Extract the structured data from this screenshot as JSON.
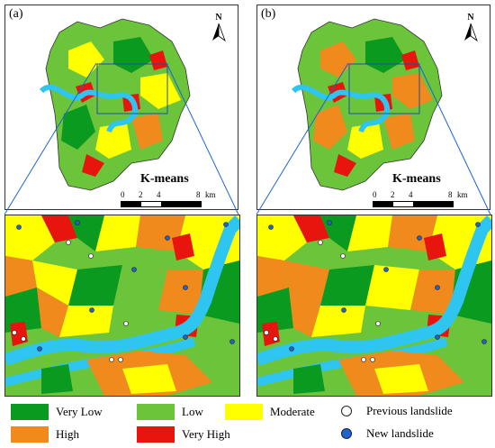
{
  "panels": [
    {
      "label": "(a)",
      "method": "K-means"
    },
    {
      "label": "(b)",
      "method": "K-means"
    }
  ],
  "north_label": "N",
  "scale": {
    "ticks": [
      "0",
      "2",
      "4",
      "8"
    ],
    "unit": "km"
  },
  "colors": {
    "very_low": "#0a9a20",
    "low": "#6cc43a",
    "moderate": "#ffff00",
    "high": "#f08a1c",
    "very_high": "#e8140e",
    "water": "#2ec6f0",
    "new_landslide": "#1e64d0",
    "previous_landslide": "#ffffff"
  },
  "legend": {
    "very_low": "Very Low",
    "low": "Low",
    "moderate": "Moderate",
    "high": "High",
    "very_high": "Very High",
    "previous": "Previous landslide",
    "new": "New landslide"
  }
}
